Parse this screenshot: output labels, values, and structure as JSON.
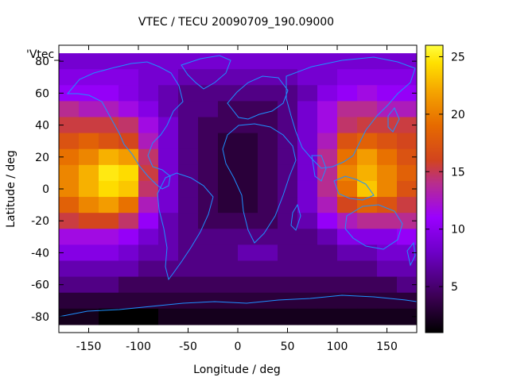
{
  "chart_data": {
    "type": "heatmap",
    "title": "VTEC / TECU 20090709_190.09000",
    "xlabel": "Longitude / deg",
    "ylabel": "Latitude / deg",
    "legend_key": "'Vtec_",
    "xlim": [
      -180,
      180
    ],
    "ylim": [
      -90,
      90
    ],
    "x_ticks": [
      -150,
      -100,
      -50,
      0,
      50,
      100,
      150
    ],
    "y_ticks": [
      -80,
      -60,
      -40,
      -20,
      0,
      20,
      40,
      60,
      80
    ],
    "colorbar": {
      "range": [
        1,
        26
      ],
      "ticks": [
        5,
        10,
        15,
        20,
        25
      ],
      "palette": [
        "#000000",
        "#3a0050",
        "#6e00c8",
        "#9a00ff",
        "#b82e8c",
        "#d2441e",
        "#e66a00",
        "#f5a500",
        "#ffe100",
        "#ffff40"
      ]
    },
    "coastline_color": "#1e90ff",
    "grid": false,
    "longitudes": [
      -170,
      -150,
      -130,
      -110,
      -90,
      -70,
      -50,
      -30,
      -10,
      10,
      30,
      50,
      70,
      90,
      110,
      130,
      150,
      170
    ],
    "latitudes": [
      80,
      70,
      60,
      50,
      40,
      30,
      20,
      10,
      0,
      -10,
      -20,
      -30,
      -40,
      -50,
      -60,
      -70,
      -80
    ],
    "values": [
      [
        7,
        7,
        7,
        7,
        7,
        7,
        7,
        7,
        7,
        7,
        7,
        7,
        7,
        7,
        7,
        7,
        7,
        7
      ],
      [
        8,
        8,
        8,
        8,
        7,
        7,
        6,
        6,
        6,
        6,
        6,
        6,
        7,
        7,
        8,
        8,
        8,
        8
      ],
      [
        9,
        9,
        9,
        8,
        7,
        6,
        5,
        5,
        5,
        5,
        5,
        5,
        6,
        8,
        9,
        10,
        9,
        9
      ],
      [
        12,
        11,
        11,
        10,
        8,
        6,
        5,
        5,
        4,
        4,
        4,
        5,
        7,
        10,
        12,
        12,
        11,
        11
      ],
      [
        14,
        14,
        14,
        13,
        10,
        7,
        5,
        4,
        4,
        4,
        4,
        5,
        7,
        10,
        13,
        14,
        14,
        14
      ],
      [
        16,
        17,
        16,
        15,
        11,
        7,
        5,
        4,
        3,
        3,
        4,
        5,
        7,
        11,
        16,
        17,
        16,
        15
      ],
      [
        18,
        19,
        21,
        20,
        13,
        7,
        5,
        4,
        3,
        3,
        4,
        5,
        7,
        12,
        18,
        20,
        18,
        16
      ],
      [
        19,
        21,
        24,
        23,
        14,
        7,
        5,
        4,
        3,
        3,
        4,
        5,
        7,
        12,
        19,
        21,
        19,
        17
      ],
      [
        19,
        21,
        23,
        22,
        13,
        7,
        5,
        4,
        3,
        3,
        4,
        5,
        7,
        12,
        18,
        22,
        19,
        16
      ],
      [
        17,
        19,
        20,
        18,
        11,
        7,
        5,
        4,
        3,
        3,
        4,
        5,
        7,
        11,
        15,
        17,
        16,
        14
      ],
      [
        14,
        15,
        15,
        13,
        9,
        6,
        5,
        4,
        4,
        4,
        4,
        5,
        6,
        9,
        11,
        12,
        12,
        12
      ],
      [
        10,
        10,
        10,
        9,
        7,
        6,
        5,
        5,
        5,
        5,
        5,
        5,
        5,
        6,
        8,
        8,
        8,
        9
      ],
      [
        8,
        8,
        8,
        7,
        6,
        6,
        5,
        5,
        5,
        6,
        6,
        5,
        5,
        5,
        6,
        6,
        7,
        7
      ],
      [
        6,
        6,
        6,
        6,
        5,
        5,
        5,
        5,
        5,
        5,
        5,
        5,
        5,
        5,
        5,
        5,
        6,
        6
      ],
      [
        5,
        5,
        5,
        4,
        4,
        4,
        4,
        4,
        4,
        4,
        4,
        4,
        4,
        4,
        4,
        4,
        4,
        5
      ],
      [
        3,
        3,
        3,
        3,
        3,
        3,
        3,
        3,
        3,
        3,
        3,
        3,
        3,
        3,
        3,
        3,
        3,
        3
      ],
      [
        2,
        2,
        1,
        1,
        1,
        2,
        2,
        2,
        2,
        2,
        2,
        2,
        2,
        2,
        2,
        2,
        2,
        2
      ]
    ]
  }
}
